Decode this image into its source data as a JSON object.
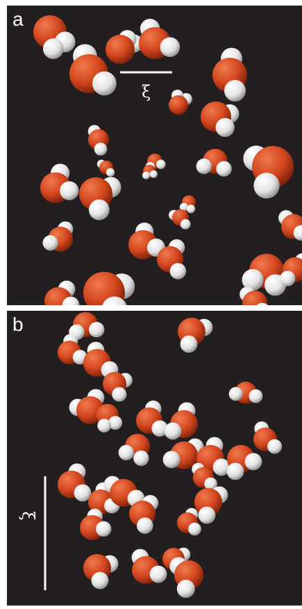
{
  "panels": [
    {
      "label": "a",
      "scale_symbol": "ξ"
    },
    {
      "label": "b",
      "scale_symbol": "ξ"
    }
  ],
  "colors": {
    "background": "#231f20",
    "oxygen": "#d4471f",
    "hydrogen": "#e8e8e8",
    "scale_bar": "#ffffff"
  }
}
